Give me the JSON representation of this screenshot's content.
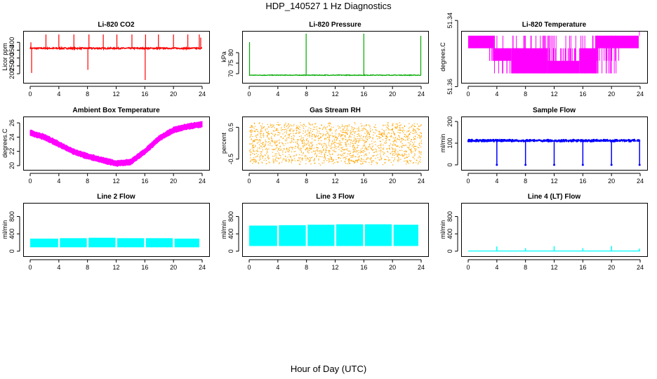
{
  "main_title": "HDP_140527  1 Hz Diagnostics",
  "x_axis_title": "Hour of Day (UTC)",
  "colors": {
    "red": "#ff0000",
    "green": "#00aa00",
    "magenta": "#ff00ff",
    "orange": "#ffa500",
    "blue": "#0000ff",
    "cyan": "#00ffff"
  },
  "chart_data": [
    {
      "id": "co2",
      "type": "line",
      "title": "Li-820 CO2",
      "ylabel": "Licor ppm",
      "color": "#ff0000",
      "xlim": [
        0,
        24
      ],
      "xticks": [
        0,
        4,
        8,
        12,
        16,
        20,
        24
      ],
      "ylim": [
        160,
        455
      ],
      "yticks": [
        200,
        250,
        300,
        350,
        400
      ],
      "series": [
        {
          "name": "co2",
          "baseline": 362,
          "noise": 8,
          "spikes_up": [
            [
              0.1,
              400
            ],
            [
              2.2,
              450
            ],
            [
              4,
              450
            ],
            [
              6.1,
              450
            ],
            [
              8.2,
              450
            ],
            [
              10.2,
              450
            ],
            [
              12.1,
              450
            ],
            [
              14.2,
              450
            ],
            [
              16.1,
              450
            ],
            [
              17.9,
              450
            ],
            [
              20,
              450
            ],
            [
              22,
              450
            ],
            [
              23.6,
              450
            ],
            [
              23.8,
              430
            ]
          ],
          "spikes_down": [
            [
              0.2,
              205
            ],
            [
              8.05,
              225
            ],
            [
              16.05,
              160
            ]
          ]
        }
      ]
    },
    {
      "id": "pressure",
      "type": "line",
      "title": "Li-820 Pressure",
      "ylabel": "kPa",
      "color": "#00aa00",
      "xlim": [
        0,
        24
      ],
      "xticks": [
        0,
        4,
        8,
        12,
        16,
        20,
        24
      ],
      "ylim": [
        67,
        89
      ],
      "yticks": [
        70,
        75,
        80
      ],
      "series": [
        {
          "name": "pressure",
          "baseline": 69.3,
          "noise": 0.3,
          "spikes_up": [
            [
              0.05,
              85
            ],
            [
              7.95,
              89
            ],
            [
              16,
              89
            ],
            [
              23.95,
              88
            ]
          ]
        }
      ]
    },
    {
      "id": "licor_temp",
      "type": "line",
      "title": "Li-820 Temperature",
      "ylabel": "degrees.C",
      "color": "#ff00ff",
      "xlim": [
        0,
        24
      ],
      "xticks": [
        0,
        4,
        8,
        12,
        16,
        20,
        24
      ],
      "ylim": [
        51.358,
        51.344
      ],
      "yticks": [
        51.34,
        51.36
      ],
      "ytick_labels": [
        "51.34",
        "51.36"
      ],
      "series": [
        {
          "name": "temperature",
          "levels": [
            51.3446,
            51.3484,
            51.3522,
            51.356
          ]
        }
      ]
    },
    {
      "id": "ambient",
      "type": "line",
      "title": "Ambient Box Temperature",
      "ylabel": "degrees.C",
      "color": "#ff00ff",
      "xlim": [
        0,
        24
      ],
      "xticks": [
        0,
        4,
        8,
        12,
        16,
        20,
        24
      ],
      "ylim": [
        19.8,
        26.5
      ],
      "yticks": [
        20,
        22,
        24,
        26
      ],
      "series": [
        {
          "name": "ambient",
          "x": [
            0,
            2,
            4,
            6,
            8,
            10,
            12,
            14,
            16,
            18,
            20,
            22,
            24
          ],
          "y": [
            24.6,
            24.0,
            23.0,
            22.0,
            21.3,
            20.8,
            20.3,
            20.5,
            22.0,
            23.8,
            25.0,
            25.5,
            25.8
          ],
          "band": 0.6
        }
      ]
    },
    {
      "id": "rh",
      "type": "scatter",
      "title": "Gas Stream RH",
      "ylabel": "percent",
      "color": "#ffa500",
      "xlim": [
        0,
        24
      ],
      "xticks": [
        0,
        4,
        8,
        12,
        16,
        20,
        24
      ],
      "ylim": [
        -0.75,
        0.75
      ],
      "yticks": [
        -0.5,
        0.5
      ],
      "ytick_labels": [
        "-0.5",
        "0.5"
      ],
      "series": [
        {
          "name": "rh",
          "min": -0.62,
          "max": 0.62
        }
      ]
    },
    {
      "id": "sample_flow",
      "type": "line",
      "title": "Sample Flow",
      "ylabel": "ml/min",
      "color": "#0000ff",
      "xlim": [
        0,
        24
      ],
      "xticks": [
        0,
        4,
        8,
        12,
        16,
        20,
        24
      ],
      "ylim": [
        -10,
        210
      ],
      "yticks": [
        0,
        100,
        200
      ],
      "series": [
        {
          "name": "sample",
          "baseline": 112,
          "noise": 6,
          "dips": [
            4,
            8,
            12,
            16,
            20,
            24
          ]
        }
      ]
    },
    {
      "id": "line2",
      "type": "area",
      "title": "Line 2 Flow",
      "ylabel": "ml/min",
      "color": "#00ffff",
      "xlim": [
        0,
        24
      ],
      "xticks": [
        0,
        4,
        8,
        12,
        16,
        20,
        24
      ],
      "ylim": [
        -50,
        1050
      ],
      "yticks": [
        0,
        400,
        800
      ],
      "series": [
        {
          "name": "line2",
          "low": 90,
          "high": [
            290,
            300,
            310,
            300,
            300,
            290
          ],
          "gaps": [
            4,
            8,
            12,
            16,
            20,
            24
          ]
        }
      ]
    },
    {
      "id": "line3",
      "type": "area",
      "title": "Line 3 Flow",
      "ylabel": "ml/min",
      "color": "#00ffff",
      "xlim": [
        0,
        24
      ],
      "xticks": [
        0,
        4,
        8,
        12,
        16,
        20,
        24
      ],
      "ylim": [
        -50,
        1050
      ],
      "yticks": [
        0,
        400,
        800
      ],
      "series": [
        {
          "name": "line3",
          "low": 120,
          "high": [
            590,
            600,
            610,
            620,
            620,
            610
          ],
          "gaps": [
            4,
            8,
            12,
            16,
            20,
            24
          ]
        }
      ]
    },
    {
      "id": "line4",
      "type": "line",
      "title": "Line 4 (LT) Flow",
      "ylabel": "ml/min",
      "color": "#00ffff",
      "xlim": [
        0,
        24
      ],
      "xticks": [
        0,
        4,
        8,
        12,
        16,
        20,
        24
      ],
      "ylim": [
        -50,
        1050
      ],
      "yticks": [
        0,
        400,
        800
      ],
      "series": [
        {
          "name": "line4",
          "baseline": 5,
          "spikes_up": [
            [
              4,
              110
            ],
            [
              8,
              70
            ],
            [
              12,
              115
            ],
            [
              16,
              70
            ],
            [
              20,
              120
            ],
            [
              24,
              60
            ]
          ]
        }
      ]
    }
  ]
}
